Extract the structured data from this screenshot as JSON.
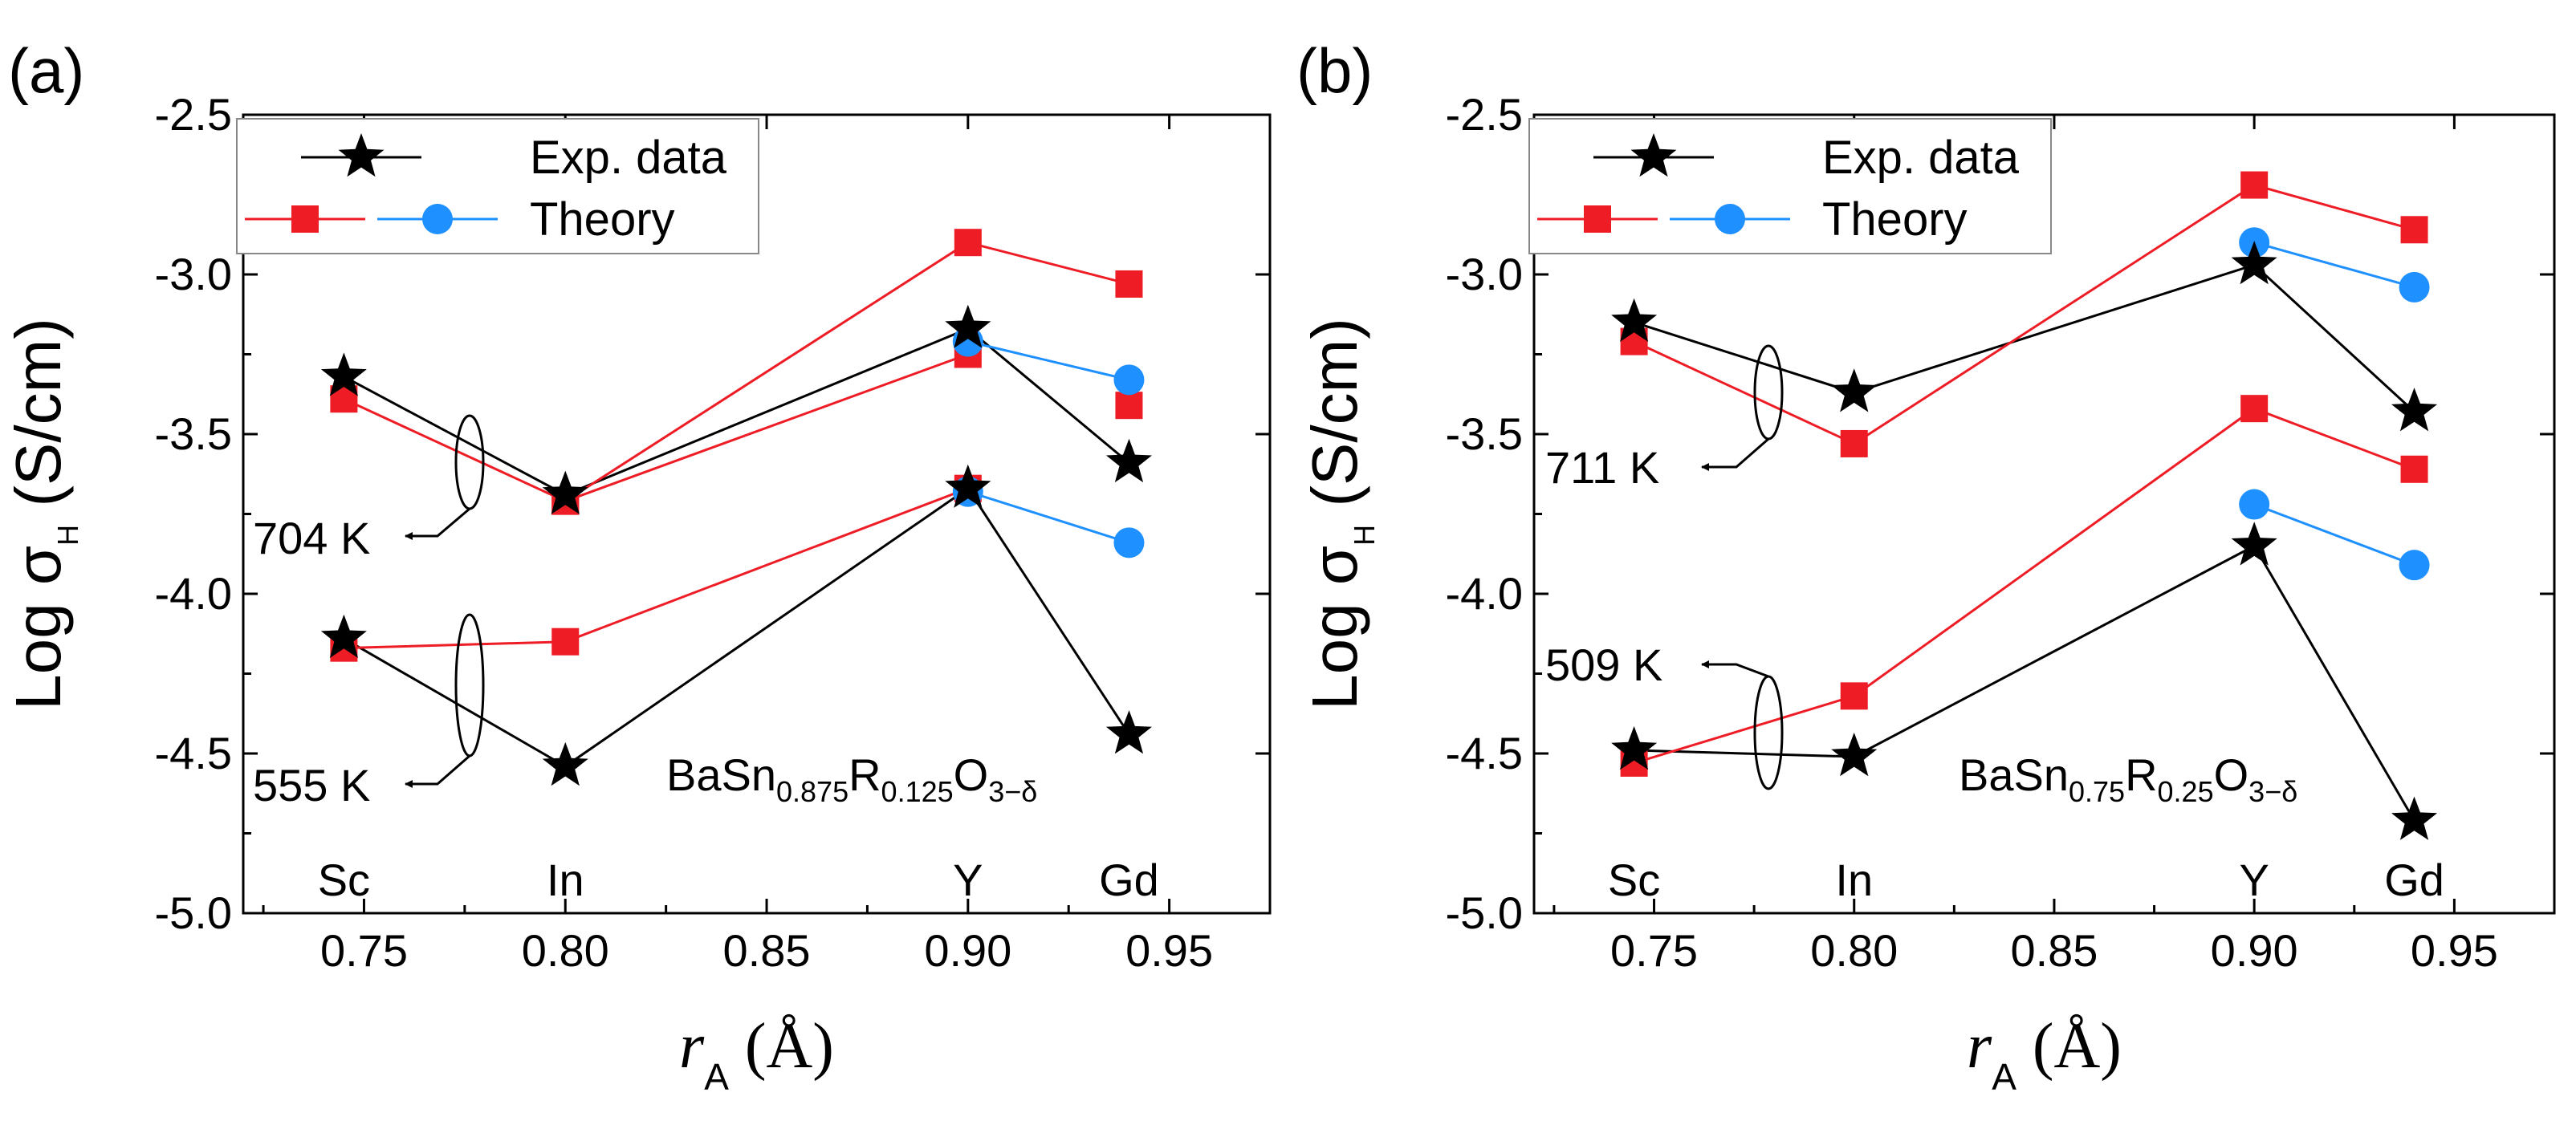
{
  "chart_data": [
    {
      "type": "line",
      "panel_label": "(a)",
      "categories": [
        "Sc",
        "In",
        "Y",
        "Gd"
      ],
      "x": [
        0.745,
        0.8,
        0.9,
        0.94
      ],
      "xlim": [
        0.72,
        0.975
      ],
      "ylim": [
        -5.0,
        -2.5
      ],
      "xticks": [
        "0.75",
        "0.80",
        "0.85",
        "0.90",
        "0.95"
      ],
      "xtick_values": [
        0.75,
        0.8,
        0.85,
        0.9,
        0.95
      ],
      "yticks": [
        "-2.5",
        "-3.0",
        "-3.5",
        "-4.0",
        "-4.5",
        "-5.0"
      ],
      "ytick_values": [
        -2.5,
        -3.0,
        -3.5,
        -4.0,
        -4.5,
        -5.0
      ],
      "ylabel_main": "Log σ",
      "ylabel_sub": "H",
      "ylabel_unit": "(S/cm)",
      "xlabel_main": "r",
      "xlabel_sub": "A",
      "xlabel_unit": "(Å)",
      "formula": {
        "base": "BaSn",
        "s1": "0.875",
        "r": "R",
        "s2": "0.125",
        "o": "O",
        "s3": "3−δ"
      },
      "legend": {
        "exp": "Exp. data",
        "theory": "Theory"
      },
      "temp_labels": [
        "704 K",
        "555 K"
      ],
      "series": [
        {
          "name": "Exp. data 704 K",
          "kind": "exp",
          "color": "#000000",
          "marker": "star",
          "connect": [
            0,
            1,
            2,
            3
          ],
          "values": [
            -3.32,
            -3.69,
            -3.17,
            -3.59
          ]
        },
        {
          "name": "Theory 704 K (red)",
          "kind": "theory_red",
          "color": "#ee1c25",
          "marker": "square",
          "connect": [
            0,
            1,
            2
          ],
          "values": [
            -3.39,
            -3.71,
            -3.25,
            -3.41
          ]
        },
        {
          "name": "Theory 704 K (red upper)",
          "kind": "theory_red",
          "color": "#ee1c25",
          "marker": "square",
          "connect": [
            1,
            2,
            3
          ],
          "values": [
            null,
            -3.71,
            -2.9,
            -3.03
          ]
        },
        {
          "name": "Theory 704 K (blue)",
          "kind": "theory_blue",
          "color": "#1e90ff",
          "marker": "circle",
          "connect": [
            2,
            3
          ],
          "values": [
            null,
            null,
            -3.21,
            -3.33
          ]
        },
        {
          "name": "Exp. data 555 K",
          "kind": "exp",
          "color": "#000000",
          "marker": "star",
          "connect": [
            0,
            1,
            2,
            3
          ],
          "values": [
            -4.14,
            -4.54,
            -3.67,
            -4.44
          ]
        },
        {
          "name": "Theory 555 K (red)",
          "kind": "theory_red",
          "color": "#ee1c25",
          "marker": "square",
          "connect": [
            0,
            1,
            2
          ],
          "values": [
            -4.17,
            -4.15,
            -3.67,
            null
          ]
        },
        {
          "name": "Theory 555 K (blue)",
          "kind": "theory_blue",
          "color": "#1e90ff",
          "marker": "circle",
          "connect": [
            2,
            3
          ],
          "values": [
            null,
            null,
            -3.68,
            -3.84
          ]
        }
      ]
    },
    {
      "type": "line",
      "panel_label": "(b)",
      "categories": [
        "Sc",
        "In",
        "Y",
        "Gd"
      ],
      "x": [
        0.745,
        0.8,
        0.9,
        0.94
      ],
      "xlim": [
        0.72,
        0.975
      ],
      "ylim": [
        -5.0,
        -2.5
      ],
      "xticks": [
        "0.75",
        "0.80",
        "0.85",
        "0.90",
        "0.95"
      ],
      "xtick_values": [
        0.75,
        0.8,
        0.85,
        0.9,
        0.95
      ],
      "yticks": [
        "-2.5",
        "-3.0",
        "-3.5",
        "-4.0",
        "-4.5",
        "-5.0"
      ],
      "ytick_values": [
        -2.5,
        -3.0,
        -3.5,
        -4.0,
        -4.5,
        -5.0
      ],
      "ylabel_main": "Log σ",
      "ylabel_sub": "H",
      "ylabel_unit": "(S/cm)",
      "xlabel_main": "r",
      "xlabel_sub": "A",
      "xlabel_unit": "(Å)",
      "formula": {
        "base": "BaSn",
        "s1": "0.75",
        "r": "R",
        "s2": "0.25",
        "o": "O",
        "s3": "3−δ"
      },
      "legend": {
        "exp": "Exp. data",
        "theory": "Theory"
      },
      "temp_labels": [
        "711 K",
        "509 K"
      ],
      "series": [
        {
          "name": "Exp. data 711 K",
          "kind": "exp",
          "color": "#000000",
          "marker": "star",
          "connect": [
            0,
            1,
            2,
            3
          ],
          "values": [
            -3.15,
            -3.37,
            -2.97,
            -3.43
          ]
        },
        {
          "name": "Theory 711 K (red)",
          "kind": "theory_red",
          "color": "#ee1c25",
          "marker": "square",
          "connect": [
            0,
            1,
            2,
            3
          ],
          "values": [
            -3.21,
            -3.53,
            -2.72,
            -2.86
          ]
        },
        {
          "name": "Theory 711 K (blue)",
          "kind": "theory_blue",
          "color": "#1e90ff",
          "marker": "circle",
          "connect": [
            2,
            3
          ],
          "values": [
            null,
            null,
            -2.9,
            -3.04
          ]
        },
        {
          "name": "Exp. data 509 K",
          "kind": "exp",
          "color": "#000000",
          "marker": "star",
          "connect": [
            0,
            1,
            2,
            3
          ],
          "values": [
            -4.49,
            -4.51,
            -3.85,
            -4.71
          ]
        },
        {
          "name": "Theory 509 K (red)",
          "kind": "theory_red",
          "color": "#ee1c25",
          "marker": "square",
          "connect": [
            0,
            1,
            2,
            3
          ],
          "values": [
            -4.53,
            -4.32,
            -3.42,
            -3.61
          ]
        },
        {
          "name": "Theory 509 K (blue)",
          "kind": "theory_blue",
          "color": "#1e90ff",
          "marker": "circle",
          "connect": [
            2,
            3
          ],
          "values": [
            null,
            null,
            -3.72,
            -3.91
          ]
        }
      ]
    }
  ]
}
